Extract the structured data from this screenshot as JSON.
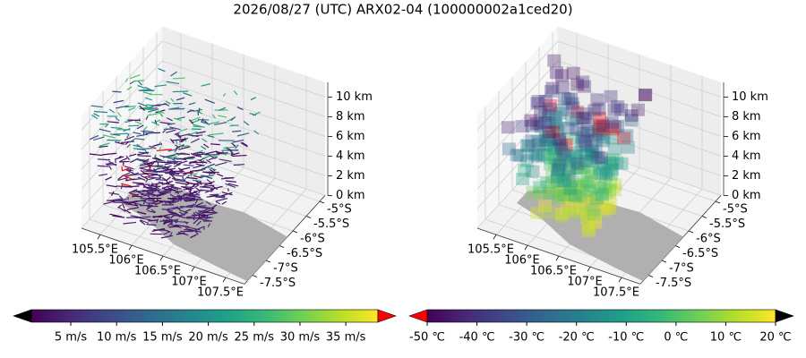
{
  "title": "2026/08/27 (UTC) ARX02-04 (100000002a1ced20)",
  "chart_data": [
    {
      "type": "wind3d",
      "xlim": [
        105.2,
        107.8
      ],
      "ylim": [
        -7.8,
        -4.8
      ],
      "zlim": [
        0,
        11.5
      ],
      "xticks": [
        {
          "value": 105.5,
          "label": "105.5°E"
        },
        {
          "value": 106,
          "label": "106°E"
        },
        {
          "value": 106.5,
          "label": "106.5°E"
        },
        {
          "value": 107,
          "label": "107°E"
        },
        {
          "value": 107.5,
          "label": "107.5°E"
        }
      ],
      "yticks": [
        {
          "value": -5,
          "label": "-5°S"
        },
        {
          "value": -5.5,
          "label": "-5.5°S"
        },
        {
          "value": -6,
          "label": "-6°S"
        },
        {
          "value": -6.5,
          "label": "-6.5°S"
        },
        {
          "value": -7,
          "label": "-7°S"
        },
        {
          "value": -7.5,
          "label": "-7.5°S"
        }
      ],
      "zticks": [
        {
          "value": 0,
          "label": "0 km"
        },
        {
          "value": 2,
          "label": "2 km"
        },
        {
          "value": 4,
          "label": "4 km"
        },
        {
          "value": 6,
          "label": "6 km"
        },
        {
          "value": 8,
          "label": "8 km"
        },
        {
          "value": 10,
          "label": "10 km"
        }
      ],
      "colorbar": {
        "clim": [
          0.7,
          38.5
        ],
        "colormap": "viridis",
        "under_color": "#000000",
        "over_color": "#ff0000",
        "ticks": [
          {
            "value": 5,
            "label": "5 m/s"
          },
          {
            "value": 10,
            "label": "10 m/s"
          },
          {
            "value": 15,
            "label": "15 m/s"
          },
          {
            "value": 20,
            "label": "20 m/s"
          },
          {
            "value": 25,
            "label": "25 m/s"
          },
          {
            "value": 30,
            "label": "30 m/s"
          },
          {
            "value": 35,
            "label": "35 m/s"
          }
        ]
      }
    },
    {
      "type": "voxel3d",
      "xlim": [
        105.2,
        107.8
      ],
      "ylim": [
        -7.8,
        -4.8
      ],
      "zlim": [
        0,
        11.5
      ],
      "xticks": [
        {
          "value": 105.5,
          "label": "105.5°E"
        },
        {
          "value": 106,
          "label": "106°E"
        },
        {
          "value": 106.5,
          "label": "106.5°E"
        },
        {
          "value": 107,
          "label": "107°E"
        },
        {
          "value": 107.5,
          "label": "107.5°E"
        }
      ],
      "yticks": [
        {
          "value": -5,
          "label": "-5°S"
        },
        {
          "value": -5.5,
          "label": "-5.5°S"
        },
        {
          "value": -6,
          "label": "-6°S"
        },
        {
          "value": -6.5,
          "label": "-6.5°S"
        },
        {
          "value": -7,
          "label": "-7°S"
        },
        {
          "value": -7.5,
          "label": "-7.5°S"
        }
      ],
      "zticks": [
        {
          "value": 0,
          "label": "0 km"
        },
        {
          "value": 2,
          "label": "2 km"
        },
        {
          "value": 4,
          "label": "4 km"
        },
        {
          "value": 6,
          "label": "6 km"
        },
        {
          "value": 8,
          "label": "8 km"
        },
        {
          "value": 10,
          "label": "10 km"
        }
      ],
      "colorbar": {
        "clim": [
          -50,
          20
        ],
        "colormap": "viridis",
        "under_color": "#ff0000",
        "over_color": "#000000",
        "ticks": [
          {
            "value": -50,
            "label": "-50 ℃"
          },
          {
            "value": -40,
            "label": "-40 ℃"
          },
          {
            "value": -30,
            "label": "-30 ℃"
          },
          {
            "value": -20,
            "label": "-20 ℃"
          },
          {
            "value": -10,
            "label": "-10 ℃"
          },
          {
            "value": 0,
            "label": "0 ℃"
          },
          {
            "value": 10,
            "label": "10 ℃"
          },
          {
            "value": 20,
            "label": "20 ℃"
          }
        ]
      }
    }
  ]
}
